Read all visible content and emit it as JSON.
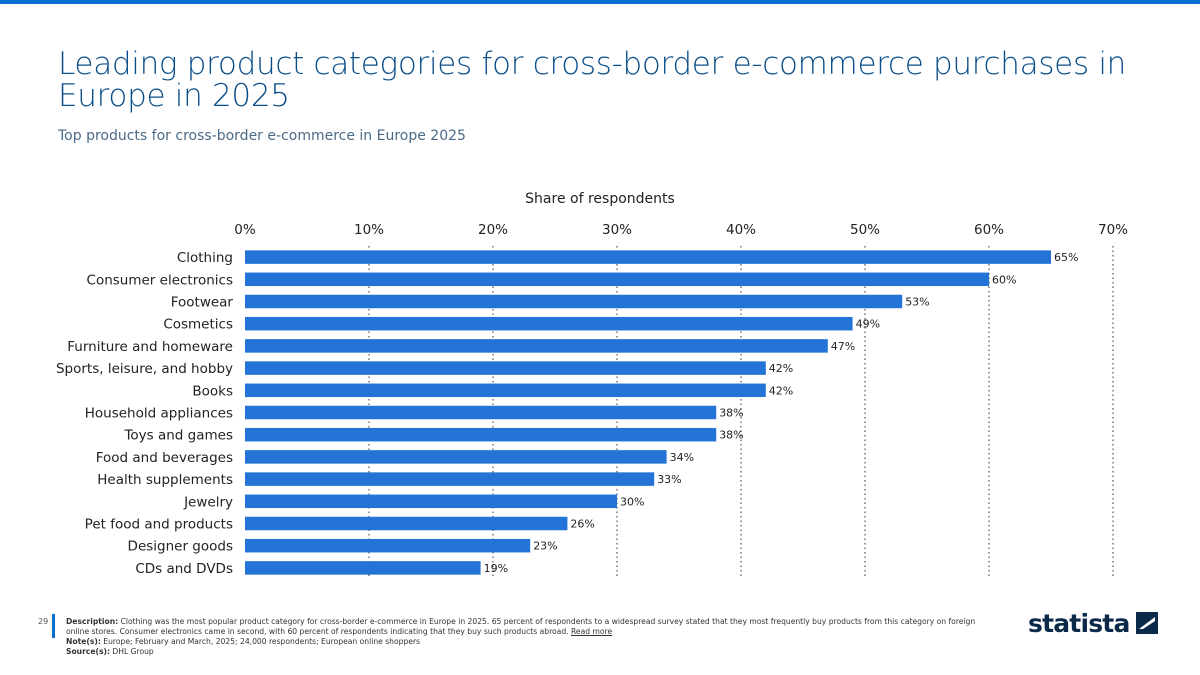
{
  "page": {
    "title": "Leading product categories for cross-border e-commerce purchases in Europe in 2025",
    "subtitle": "Top products for cross-border e-commerce in Europe 2025",
    "page_number": "29",
    "brand": "statista"
  },
  "footer": {
    "description_label": "Description:",
    "description_text": "Clothing was the most popular product category for cross-border e-commerce in Europe in 2025. 65 percent of respondents to a widespread survey stated that they most frequently buy products from this category on foreign online stores. Consumer electronics came in second, with 60 percent of respondents indicating that they buy such products abroad.",
    "read_more": "Read more",
    "notes_label": "Note(s):",
    "notes_text": "Europe; February and March, 2025; 24,000 respondents; European online shoppers",
    "source_label": "Source(s):",
    "source_text": "DHL Group"
  },
  "colors": {
    "bar": "#2473d7",
    "accent": "#0b6fd1",
    "title": "#0b4f8a"
  },
  "chart_data": {
    "type": "bar",
    "orientation": "horizontal",
    "xlabel": "Share of respondents",
    "xlim": [
      0,
      70
    ],
    "xticks": [
      0,
      10,
      20,
      30,
      40,
      50,
      60,
      70
    ],
    "xtick_labels": [
      "0%",
      "10%",
      "20%",
      "30%",
      "40%",
      "50%",
      "60%",
      "70%"
    ],
    "grid": "vertical dotted",
    "categories": [
      "Clothing",
      "Consumer electronics",
      "Footwear",
      "Cosmetics",
      "Furniture and homeware",
      "Sports, leisure, and hobby",
      "Books",
      "Household appliances",
      "Toys and games",
      "Food and beverages",
      "Health supplements",
      "Jewelry",
      "Pet food and products",
      "Designer goods",
      "CDs and DVDs"
    ],
    "values": [
      65,
      60,
      53,
      49,
      47,
      42,
      42,
      38,
      38,
      34,
      33,
      30,
      26,
      23,
      19
    ],
    "value_labels": [
      "65%",
      "60%",
      "53%",
      "49%",
      "47%",
      "42%",
      "42%",
      "38%",
      "38%",
      "34%",
      "33%",
      "30%",
      "26%",
      "23%",
      "19%"
    ]
  }
}
